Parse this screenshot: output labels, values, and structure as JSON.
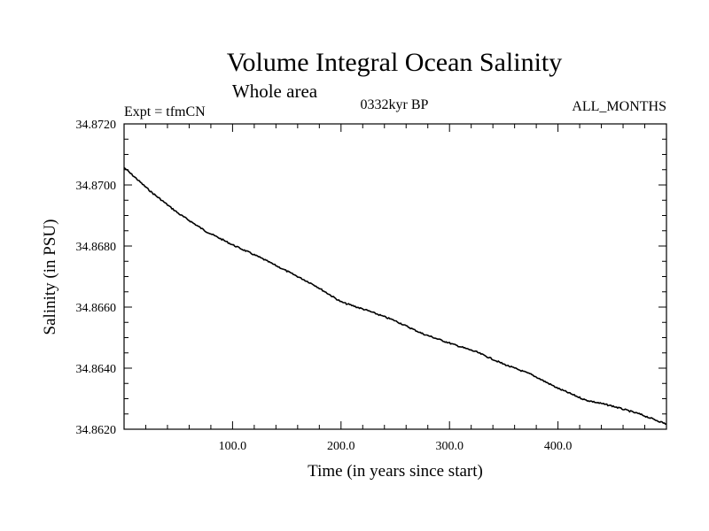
{
  "chart_data": {
    "type": "line",
    "title": "Volume Integral Ocean Salinity",
    "subtitle": "Whole area",
    "left_label": "Expt = tfmCN",
    "center_label": "0332kyr BP",
    "right_label": "ALL_MONTHS",
    "xlabel": "Time (in years since start)",
    "ylabel": "Salinity (in PSU)",
    "xlim": [
      0,
      500
    ],
    "ylim": [
      34.862,
      34.872
    ],
    "x_ticks": [
      100,
      200,
      300,
      400
    ],
    "x_tick_labels": [
      "100.0",
      "200.0",
      "300.0",
      "400.0"
    ],
    "y_ticks": [
      34.862,
      34.864,
      34.866,
      34.868,
      34.87,
      34.872
    ],
    "y_tick_labels": [
      "34.8620",
      "34.8640",
      "34.8660",
      "34.8680",
      "34.8700",
      "34.8720"
    ],
    "grid": false,
    "line_color": "#000000",
    "series": [
      {
        "x": [
          0,
          25,
          50,
          75,
          100,
          125,
          150,
          175,
          200,
          225,
          250,
          275,
          300,
          325,
          350,
          375,
          400,
          425,
          450,
          475,
          500
        ],
        "values": [
          34.87057,
          34.86977,
          34.86907,
          34.86849,
          34.86804,
          34.86763,
          34.86718,
          34.86673,
          34.86617,
          34.86588,
          34.86555,
          34.86513,
          34.86482,
          34.86453,
          34.86413,
          34.8638,
          34.86334,
          34.86296,
          34.86276,
          34.8625,
          34.86217
        ]
      }
    ]
  }
}
